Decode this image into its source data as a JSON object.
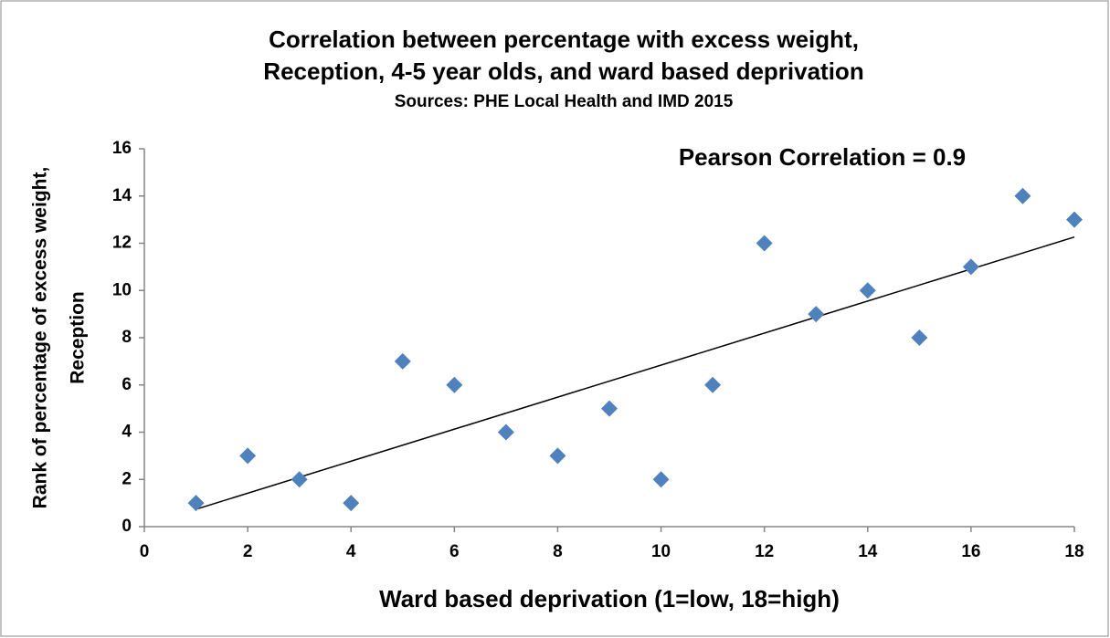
{
  "chart_data": {
    "type": "scatter",
    "title": [
      "Correlation between percentage with excess weight,",
      "Reception, 4-5 year olds, and ward based deprivation"
    ],
    "subtitle": "Sources: PHE Local Health and IMD 2015",
    "annotation": "Pearson Correlation = 0.9",
    "x_label": "Ward based deprivation (1=low, 18=high)",
    "y_label": [
      "Rank of percentage of excess weight,",
      "Reception"
    ],
    "x": [
      1,
      2,
      3,
      4,
      5,
      6,
      7,
      8,
      9,
      10,
      11,
      12,
      13,
      14,
      15,
      16,
      17,
      18
    ],
    "values": [
      1,
      3,
      2,
      1,
      7,
      6,
      4,
      3,
      5,
      2,
      6,
      12,
      9,
      10,
      8,
      11,
      14,
      13
    ],
    "color": "#4f81bd",
    "trendline": true,
    "xlim": [
      0,
      18
    ],
    "xticks": [
      0,
      2,
      4,
      6,
      8,
      10,
      12,
      14,
      16,
      18
    ],
    "ylim": [
      0,
      16
    ],
    "yticks": [
      0,
      2,
      4,
      6,
      8,
      10,
      12,
      14,
      16
    ],
    "grid": false
  }
}
